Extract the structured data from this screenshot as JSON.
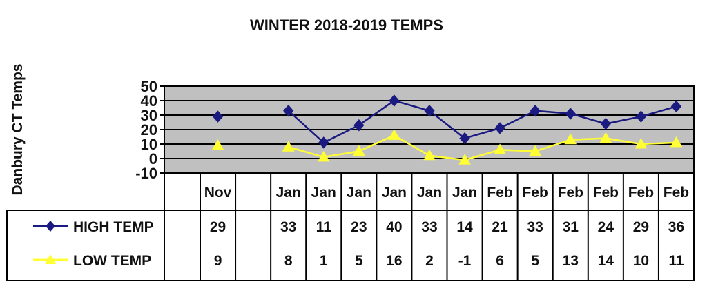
{
  "chart_data": {
    "type": "line",
    "title": "WINTER 2018-2019 TEMPS",
    "ylabel": "Danbury CT Temps",
    "xlabel": "",
    "ylim": [
      -10,
      50
    ],
    "yticks": [
      50,
      40,
      30,
      20,
      10,
      0,
      -10
    ],
    "grid": true,
    "legend": "data-table-left",
    "categories": [
      "",
      "Nov",
      "",
      "Jan",
      "Jan",
      "Jan",
      "Jan",
      "Jan",
      "Jan",
      "Feb",
      "Feb",
      "Feb",
      "Feb",
      "Feb",
      "Feb"
    ],
    "series": [
      {
        "name": "HIGH TEMP",
        "color": "#1a1a80",
        "marker": "diamond",
        "values": [
          null,
          29,
          null,
          33,
          11,
          23,
          40,
          33,
          14,
          21,
          33,
          31,
          24,
          29,
          36
        ]
      },
      {
        "name": "LOW TEMP",
        "color": "#ffff33",
        "marker": "triangle",
        "values": [
          null,
          9,
          null,
          8,
          1,
          5,
          16,
          2,
          -1,
          6,
          5,
          13,
          14,
          10,
          11
        ]
      }
    ],
    "colors": {
      "plot_background": "#c0c0c0",
      "gridline": "#000000"
    }
  }
}
